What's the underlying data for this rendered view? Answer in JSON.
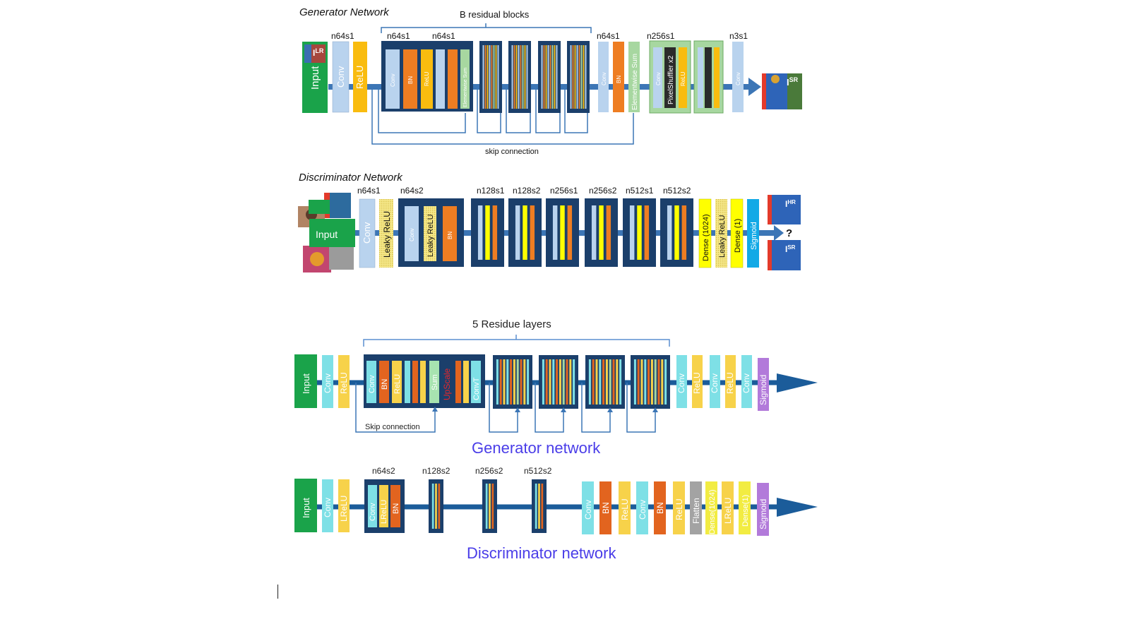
{
  "colors": {
    "conv": "#b9d3ee",
    "relu": "#f9bc0f",
    "bn": "#ee7d22",
    "input": "#1aa34a",
    "sum": "#a7d7a0",
    "block": "#1b3f6b",
    "line": "#3c76b6",
    "dense": "#ffff00",
    "sigmoid": "#12a9e6",
    "lrelu_dash": "#f6e98c",
    "cyan": "#7ee0e6",
    "yellow2": "#f7d24a",
    "orange2": "#e2641f",
    "purple": "#b27ada",
    "gray": "#a3a3a3",
    "title2": "#4a3de8"
  },
  "top": {
    "generator_title": "Generator Network",
    "residual_label": "B residual blocks",
    "skip_label": "skip connection",
    "input_label": "Input",
    "img_lr": "I",
    "img_lr_sup": "LR",
    "img_sr": "I",
    "img_sr_sup": "SR",
    "img_hr": "I",
    "img_hr_sup": "HR",
    "conv": "Conv",
    "relu": "ReLU",
    "bn": "BN",
    "esum": "Elementwise Sum",
    "pixelshuffler": "PixelShuffler x2",
    "gen_tops": [
      "n64s1",
      "n64s1",
      "n64s1",
      "n64s1",
      "n256s1",
      "n3s1"
    ],
    "discriminator_title": "Discriminator Network",
    "disc_tops": [
      "n64s1",
      "n64s2",
      "n128s1",
      "n128s2",
      "n256s1",
      "n256s2",
      "n512s1",
      "n512s2"
    ],
    "leaky_relu": "Leaky ReLU",
    "dense1024": "Dense (1024)",
    "dense1": "Dense (1)",
    "sigmoid": "Sigmoid",
    "question": "?"
  },
  "bottom": {
    "residue_label": "5 Residue layers",
    "skip_label": "Skip connection",
    "generator_title": "Generator network",
    "discriminator_title": "Discriminator network",
    "input": "Input",
    "conv": "Conv",
    "relu": "ReLU",
    "bn": "BN",
    "sum": "Sum",
    "upscale": "UpScale",
    "convt": "ConvT",
    "sigmoid": "Sigmoid",
    "lrelu": "LReLU",
    "flatten": "Flatten",
    "dense1024": "Dense(1024)",
    "dense1": "Dense(1)",
    "disc_tops": [
      "n64s2",
      "n128s2",
      "n256s2",
      "n512s2"
    ]
  }
}
